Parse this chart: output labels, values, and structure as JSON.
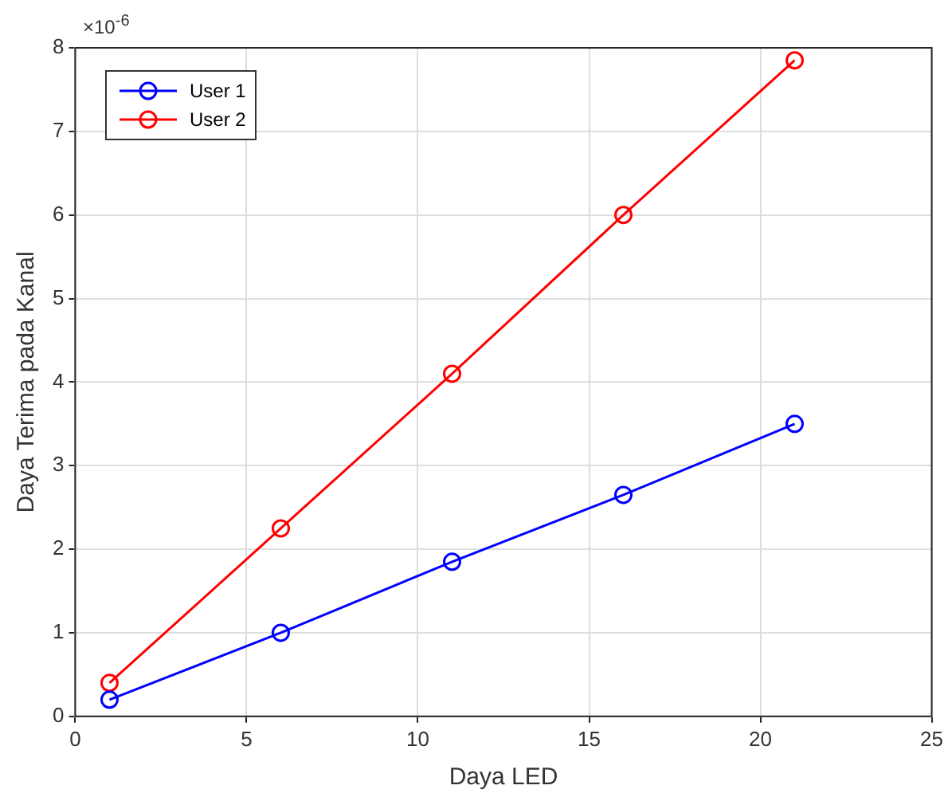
{
  "chart_data": {
    "type": "line",
    "xlabel": "Daya LED",
    "ylabel": "Daya Terima pada Kanal",
    "x": [
      1,
      6,
      11,
      16,
      21
    ],
    "series": [
      {
        "name": "User 1",
        "color": "#0000ff",
        "values": [
          0.2,
          1.0,
          1.85,
          2.65,
          3.5
        ]
      },
      {
        "name": "User 2",
        "color": "#ff0000",
        "values": [
          0.4,
          2.25,
          4.1,
          6.0,
          7.85
        ]
      }
    ],
    "xlim": [
      0,
      25
    ],
    "xticks": [
      0,
      5,
      10,
      15,
      20,
      25
    ],
    "ylim": [
      0,
      8
    ],
    "yticks": [
      0,
      1,
      2,
      3,
      4,
      5,
      6,
      7,
      8
    ],
    "annotations": [
      "×10$^{-6}$"
    ],
    "grid": true,
    "legend": "top left",
    "marker": "circle",
    "line_style": "solid"
  }
}
